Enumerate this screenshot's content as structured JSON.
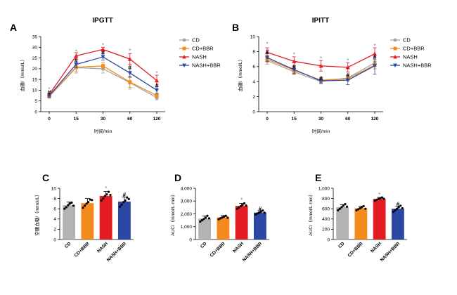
{
  "chart_data": [
    {
      "panel": "A",
      "title": "IPGTT",
      "type": "line",
      "xlabel": "时间/min",
      "ylabel": "血糖/（mmol/L）",
      "x": [
        0,
        15,
        30,
        60,
        120
      ],
      "ylim": [
        0,
        35
      ],
      "yticks": [
        0,
        5,
        10,
        15,
        20,
        25,
        30,
        35
      ],
      "legend_position": "right",
      "series": [
        {
          "name": "CD",
          "color": "#a6a6a6",
          "marker": "circle",
          "values": [
            7.0,
            20.5,
            20.0,
            13.5,
            6.5
          ],
          "errors": [
            0.8,
            2.5,
            2.0,
            3.0,
            1.0
          ]
        },
        {
          "name": "CD+BBR",
          "color": "#f28a1e",
          "marker": "square",
          "values": [
            7.3,
            20.7,
            21.3,
            13.8,
            7.5
          ],
          "errors": [
            0.8,
            2.0,
            1.5,
            2.5,
            1.0
          ]
        },
        {
          "name": "NASH",
          "color": "#e31b23",
          "marker": "triangle",
          "values": [
            8.0,
            26.0,
            29.0,
            24.5,
            14.5
          ],
          "errors": [
            0.8,
            1.5,
            1.0,
            2.5,
            2.5
          ]
        },
        {
          "name": "NASH+BBR",
          "color": "#2a48a3",
          "marker": "triangle-down",
          "values": [
            7.5,
            22.0,
            25.5,
            18.0,
            10.0
          ],
          "errors": [
            0.8,
            1.5,
            1.5,
            2.0,
            1.5
          ]
        }
      ],
      "annotations": [
        {
          "x": 0,
          "text": "*",
          "y": 10.5
        },
        {
          "x": 0,
          "text": "#",
          "y": 9.2
        },
        {
          "x": 15,
          "text": "*",
          "y": 28.0
        },
        {
          "x": 15,
          "text": "#",
          "y": 24.0
        },
        {
          "x": 30,
          "text": "*",
          "y": 31.0
        },
        {
          "x": 30,
          "text": "#",
          "y": 27.5
        },
        {
          "x": 60,
          "text": "*",
          "y": 28.5
        },
        {
          "x": 60,
          "text": "#",
          "y": 20.8
        },
        {
          "x": 120,
          "text": "*",
          "y": 18.0
        },
        {
          "x": 120,
          "text": "#",
          "y": 12.2
        }
      ]
    },
    {
      "panel": "B",
      "title": "IPITT",
      "type": "line",
      "xlabel": "时间/min",
      "ylabel": "血糖/（mmol/L）",
      "x": [
        0,
        15,
        30,
        60,
        120
      ],
      "ylim": [
        0,
        10
      ],
      "yticks": [
        0,
        2,
        4,
        6,
        8,
        10
      ],
      "legend_position": "right",
      "series": [
        {
          "name": "CD",
          "color": "#a6a6a6",
          "marker": "circle",
          "values": [
            6.8,
            5.3,
            4.0,
            4.5,
            6.5
          ],
          "errors": [
            0.5,
            0.4,
            0.3,
            0.4,
            0.5
          ]
        },
        {
          "name": "CD+BBR",
          "color": "#f28a1e",
          "marker": "square",
          "values": [
            7.0,
            5.5,
            4.2,
            4.4,
            6.2
          ],
          "errors": [
            0.5,
            0.5,
            0.3,
            0.3,
            0.5
          ]
        },
        {
          "name": "NASH",
          "color": "#e31b23",
          "marker": "triangle",
          "values": [
            7.9,
            6.7,
            6.1,
            5.9,
            7.7
          ],
          "errors": [
            0.6,
            0.6,
            0.7,
            0.6,
            0.8
          ]
        },
        {
          "name": "NASH+BBR",
          "color": "#2a48a3",
          "marker": "triangle-down",
          "values": [
            7.2,
            5.6,
            4.1,
            4.2,
            6.1
          ],
          "errors": [
            0.5,
            0.5,
            0.3,
            0.6,
            1.1
          ]
        }
      ],
      "annotations": [
        {
          "x": 0,
          "text": "*",
          "y": 9.0
        },
        {
          "x": 0,
          "text": "#",
          "y": 8.0
        },
        {
          "x": 15,
          "text": "*",
          "y": 7.6
        },
        {
          "x": 15,
          "text": "#",
          "y": 6.0
        },
        {
          "x": 30,
          "text": "*",
          "y": 7.1
        },
        {
          "x": 30,
          "text": "#",
          "y": 4.5
        },
        {
          "x": 60,
          "text": "*",
          "y": 6.8
        },
        {
          "x": 60,
          "text": "#",
          "y": 4.9
        },
        {
          "x": 120,
          "text": "*",
          "y": 8.8
        },
        {
          "x": 120,
          "text": "#",
          "y": 7.3
        }
      ]
    },
    {
      "panel": "C",
      "type": "bar",
      "ylabel": "空腹血糖/（mmol/L）",
      "categories": [
        "CD",
        "CD+BBR",
        "NASH",
        "NASH+BBR"
      ],
      "colors": [
        "#b3b3b3",
        "#f28a1e",
        "#e31b23",
        "#2a48a3"
      ],
      "values": [
        6.7,
        7.1,
        8.5,
        7.4
      ],
      "errors": [
        0.6,
        0.9,
        0.9,
        0.9
      ],
      "ylim": [
        0,
        10
      ],
      "yticks": [
        0,
        2,
        4,
        6,
        8,
        10
      ],
      "points": [
        [
          6.0,
          6.3,
          6.7,
          7.0,
          7.2,
          6.6
        ],
        [
          6.2,
          6.6,
          7.0,
          7.3,
          7.8,
          7.7
        ],
        [
          7.6,
          8.0,
          8.5,
          8.8,
          9.3,
          8.7
        ],
        [
          6.4,
          6.8,
          7.3,
          7.6,
          8.2,
          7.9
        ]
      ],
      "annotations": [
        {
          "category": "NASH",
          "text": "*",
          "y": 10.0
        },
        {
          "category": "NASH+BBR",
          "text": "#",
          "y": 8.8
        }
      ]
    },
    {
      "panel": "D",
      "type": "bar",
      "ylabel": "AUC/（mmol/L·min）",
      "categories": [
        "CD",
        "CD+BBR",
        "NASH",
        "NASH+BBR"
      ],
      "colors": [
        "#b3b3b3",
        "#f28a1e",
        "#e31b23",
        "#2a48a3"
      ],
      "values": [
        1630,
        1720,
        2620,
        2100
      ],
      "errors": [
        200,
        150,
        200,
        150
      ],
      "ylim": [
        0,
        4000
      ],
      "yticks": [
        0,
        1000,
        2000,
        3000,
        4000
      ],
      "points": [
        [
          1400,
          1500,
          1600,
          1700,
          1850,
          1650
        ],
        [
          1580,
          1650,
          1720,
          1780,
          1850,
          1700
        ],
        [
          2400,
          2500,
          2600,
          2700,
          2820,
          2650
        ],
        [
          1950,
          2030,
          2100,
          2170,
          2260,
          2090
        ]
      ],
      "annotations": [
        {
          "category": "NASH",
          "text": "*",
          "y": 3100
        },
        {
          "category": "NASH+BBR",
          "text": "#",
          "y": 2420
        }
      ]
    },
    {
      "panel": "E",
      "type": "bar",
      "ylabel": "AUC/（mmol/L·min）",
      "categories": [
        "CD",
        "CD+BBR",
        "NASH",
        "NASH+BBR"
      ],
      "colors": [
        "#b3b3b3",
        "#f28a1e",
        "#e31b23",
        "#2a48a3"
      ],
      "values": [
        630,
        610,
        790,
        600
      ],
      "errors": [
        50,
        40,
        30,
        50
      ],
      "ylim": [
        0,
        1000
      ],
      "yticks": [
        0,
        200,
        400,
        600,
        800,
        1000
      ],
      "points": [
        [
          570,
          600,
          630,
          660,
          690,
          640
        ],
        [
          570,
          590,
          610,
          630,
          650,
          600
        ],
        [
          760,
          775,
          790,
          805,
          820,
          795
        ],
        [
          540,
          570,
          600,
          630,
          660,
          610
        ]
      ],
      "annotations": [
        {
          "category": "NASH",
          "text": "*",
          "y": 880
        },
        {
          "category": "NASH+BBR",
          "text": "#",
          "y": 690
        }
      ]
    }
  ]
}
